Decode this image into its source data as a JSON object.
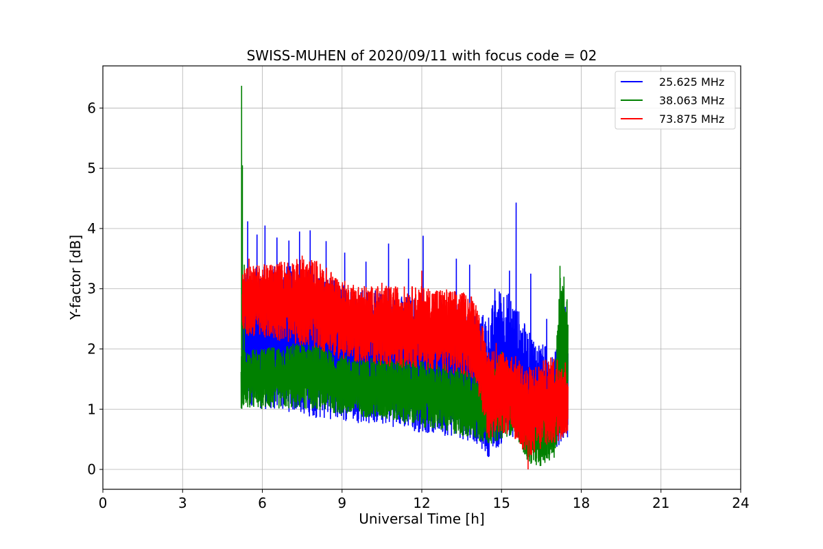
{
  "chart_data": {
    "type": "line",
    "title": "SWISS-MUHEN of 2020/09/11 with focus code = 02",
    "xlabel": "Universal Time [h]",
    "ylabel": "Y-factor [dB]",
    "xlim": [
      0,
      24
    ],
    "ylim": [
      -0.33,
      6.7
    ],
    "xticks": [
      0,
      3,
      6,
      9,
      12,
      15,
      18,
      21,
      24
    ],
    "yticks": [
      0,
      1,
      2,
      3,
      4,
      5,
      6
    ],
    "grid": true,
    "legend_position": "top-right",
    "series": [
      {
        "name": "25.625 MHz",
        "color": "#0000ff",
        "x_range": [
          5.25,
          17.5
        ],
        "envelope_x": [
          5.25,
          6,
          7,
          8,
          9,
          10,
          11,
          12,
          13,
          14,
          14.5,
          15,
          15.5,
          16,
          16.5,
          17,
          17.5
        ],
        "low": [
          1.1,
          1.0,
          0.95,
          0.85,
          0.8,
          0.75,
          0.7,
          0.6,
          0.55,
          0.45,
          0.2,
          0.4,
          0.5,
          0.3,
          0.3,
          0.35,
          0.5
        ],
        "high": [
          3.3,
          3.4,
          3.4,
          3.3,
          3.1,
          3.0,
          2.9,
          2.9,
          2.8,
          2.6,
          2.6,
          3.1,
          2.8,
          2.3,
          2.1,
          2.0,
          2.0
        ],
        "spikes": [
          {
            "x": 5.45,
            "y": 4.12
          },
          {
            "x": 5.8,
            "y": 3.9
          },
          {
            "x": 6.1,
            "y": 4.05
          },
          {
            "x": 6.55,
            "y": 3.85
          },
          {
            "x": 7.0,
            "y": 3.8
          },
          {
            "x": 7.4,
            "y": 3.95
          },
          {
            "x": 7.8,
            "y": 3.97
          },
          {
            "x": 8.4,
            "y": 3.79
          },
          {
            "x": 9.1,
            "y": 3.6
          },
          {
            "x": 9.9,
            "y": 3.45
          },
          {
            "x": 10.75,
            "y": 3.75
          },
          {
            "x": 11.5,
            "y": 3.5
          },
          {
            "x": 12.05,
            "y": 3.88
          },
          {
            "x": 13.3,
            "y": 3.5
          },
          {
            "x": 13.8,
            "y": 3.4
          },
          {
            "x": 14.75,
            "y": 3.0
          },
          {
            "x": 15.3,
            "y": 3.3
          },
          {
            "x": 15.55,
            "y": 4.43
          },
          {
            "x": 16.1,
            "y": 3.25
          },
          {
            "x": 16.7,
            "y": 2.5
          },
          {
            "x": 17.4,
            "y": 2.7
          }
        ]
      },
      {
        "name": "38.063 MHz",
        "color": "#008000",
        "x_range": [
          5.2,
          17.5
        ],
        "envelope_x": [
          5.25,
          6,
          7,
          8,
          9,
          10,
          11,
          12,
          13,
          14,
          14.5,
          15,
          15.5,
          16,
          16.5,
          17,
          17.2,
          17.5
        ],
        "low": [
          1.0,
          1.0,
          1.0,
          1.0,
          0.9,
          0.85,
          0.8,
          0.7,
          0.6,
          0.5,
          0.4,
          0.5,
          0.6,
          0.1,
          0.05,
          0.2,
          0.6,
          0.9
        ],
        "high": [
          2.0,
          2.0,
          2.1,
          2.1,
          1.9,
          1.85,
          1.85,
          1.8,
          1.75,
          1.6,
          1.6,
          2.0,
          1.5,
          0.8,
          0.8,
          1.5,
          3.3,
          2.9
        ],
        "spikes": [
          {
            "x": 5.22,
            "y": 6.37
          },
          {
            "x": 5.25,
            "y": 5.05
          },
          {
            "x": 5.32,
            "y": 3.4
          },
          {
            "x": 17.2,
            "y": 3.38
          },
          {
            "x": 17.35,
            "y": 3.2
          }
        ]
      },
      {
        "name": "73.875 MHz",
        "color": "#ff0000",
        "x_range": [
          5.25,
          17.5
        ],
        "envelope_x": [
          5.25,
          6,
          7,
          8,
          8.6,
          9,
          10,
          11,
          12,
          13,
          14,
          14.5,
          15,
          15.5,
          16,
          16.5,
          17,
          17.5
        ],
        "low": [
          2.2,
          2.2,
          2.1,
          2.0,
          1.9,
          1.8,
          1.75,
          1.7,
          1.65,
          1.6,
          1.5,
          0.5,
          0.6,
          0.5,
          0.2,
          0.3,
          0.4,
          0.6
        ],
        "high": [
          3.4,
          3.4,
          3.5,
          3.5,
          3.3,
          3.15,
          3.05,
          3.05,
          3.05,
          3.0,
          2.9,
          2.0,
          2.0,
          1.9,
          1.7,
          1.8,
          1.9,
          1.8
        ],
        "spikes": [
          {
            "x": 5.5,
            "y": 3.5
          },
          {
            "x": 7.5,
            "y": 3.55
          },
          {
            "x": 10.5,
            "y": 3.1
          },
          {
            "x": 12.0,
            "y": 3.3
          },
          {
            "x": 14.8,
            "y": 2.1
          },
          {
            "x": 16.0,
            "y": 0.0
          }
        ]
      }
    ]
  }
}
